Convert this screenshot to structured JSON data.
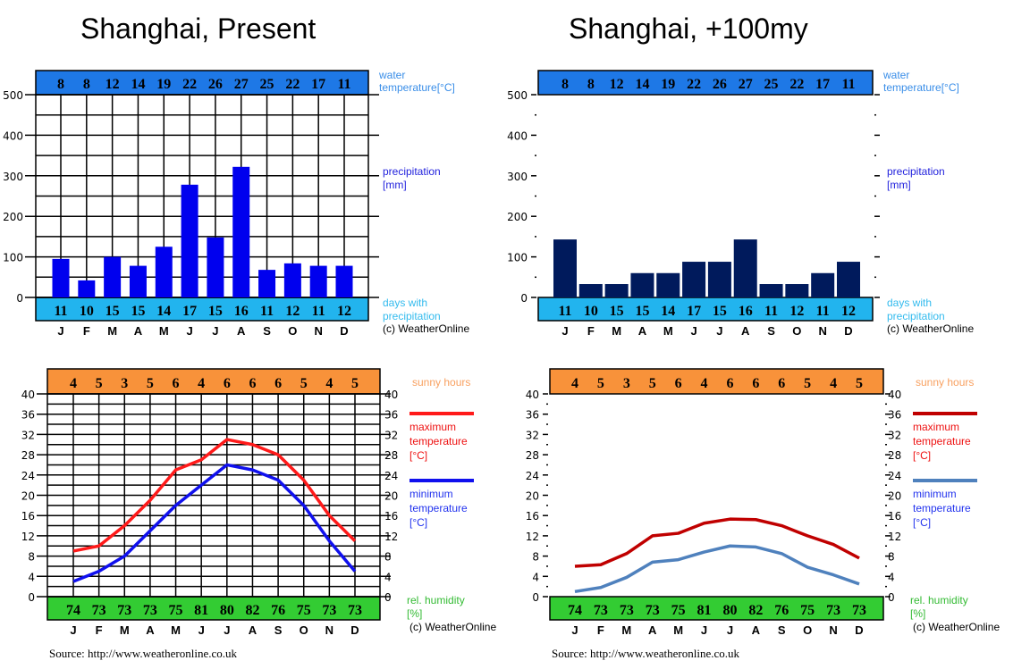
{
  "titles": [
    "Shanghai, Present",
    "Shanghai, +100my"
  ],
  "sources": [
    "Source: http://www.weatheronline.co.uk",
    "Source: http://www.weatheronline.co.uk"
  ],
  "colors": {
    "water_band": "#1e78e6",
    "days_band": "#22b4ee",
    "present_bars": "#0000ee",
    "future_bars": "#001a5c",
    "sunny_band": "#f8923a",
    "humidity_band": "#33cc33",
    "present_max": "#ff1a1a",
    "present_min": "#1010ee",
    "future_max": "#c00000",
    "future_min": "#4f81bd",
    "legend_water": "#3a8ee8",
    "legend_precip": "#2222dd",
    "legend_days": "#33bbee",
    "legend_sunny": "#f8a060",
    "legend_max": "#ee1111",
    "legend_min": "#2233ee",
    "legend_humidity": "#33bb33"
  },
  "chart_data": [
    {
      "type": "bar",
      "panel": "Shanghai, Present",
      "categories": [
        "J",
        "F",
        "M",
        "A",
        "M",
        "J",
        "J",
        "A",
        "S",
        "O",
        "N",
        "D"
      ],
      "values": [
        95,
        42,
        100,
        78,
        125,
        278,
        148,
        322,
        68,
        84,
        78,
        78
      ],
      "ylim": [
        0,
        500
      ],
      "yticks": [
        "0",
        "100",
        "200",
        "300",
        "400",
        "500"
      ],
      "grid": true,
      "water_temperature": [
        "8",
        "8",
        "12",
        "14",
        "19",
        "22",
        "26",
        "27",
        "25",
        "22",
        "17",
        "11"
      ],
      "days_with_precipitation": [
        "11",
        "10",
        "15",
        "15",
        "14",
        "17",
        "15",
        "16",
        "11",
        "12",
        "11",
        "12"
      ],
      "legend": {
        "water": [
          "water",
          "temperature[°C]"
        ],
        "precip": [
          "precipitation",
          "[mm]"
        ],
        "days": [
          "days with",
          "precipitation"
        ],
        "copyright": "(c) WeatherOnline"
      }
    },
    {
      "type": "bar",
      "panel": "Shanghai, +100my",
      "categories": [
        "J",
        "F",
        "M",
        "A",
        "M",
        "J",
        "J",
        "A",
        "S",
        "O",
        "N",
        "D"
      ],
      "values": [
        143,
        33,
        33,
        60,
        60,
        88,
        88,
        143,
        33,
        33,
        60,
        88
      ],
      "ylim": [
        0,
        500
      ],
      "yticks": [
        "0",
        "100",
        "200",
        "300",
        "400",
        "500"
      ],
      "grid": false,
      "water_temperature": [
        "8",
        "8",
        "12",
        "14",
        "19",
        "22",
        "26",
        "27",
        "25",
        "22",
        "17",
        "11"
      ],
      "days_with_precipitation": [
        "11",
        "10",
        "15",
        "15",
        "14",
        "17",
        "15",
        "16",
        "11",
        "12",
        "11",
        "12"
      ],
      "legend": {
        "water": [
          "water",
          "temperature[°C]"
        ],
        "precip": [
          "precipitation",
          "[mm]"
        ],
        "days": [
          "days with",
          "precipitation"
        ],
        "copyright": "(c) WeatherOnline"
      }
    },
    {
      "type": "line",
      "panel": "Shanghai, Present",
      "categories": [
        "J",
        "F",
        "M",
        "A",
        "M",
        "J",
        "J",
        "A",
        "S",
        "O",
        "N",
        "D"
      ],
      "series": [
        {
          "name": "maximum temperature [°C]",
          "values": [
            9,
            10,
            14,
            19,
            25,
            27,
            31,
            30,
            28,
            23,
            16,
            11
          ]
        },
        {
          "name": "minimum temperature [°C]",
          "values": [
            3,
            5,
            8,
            13,
            18,
            22,
            26,
            25,
            23,
            18,
            11,
            5
          ]
        }
      ],
      "ylim": [
        0,
        40
      ],
      "yticks": [
        "0",
        "4",
        "8",
        "12",
        "16",
        "20",
        "24",
        "28",
        "32",
        "36",
        "40"
      ],
      "grid": true,
      "sunny_hours": [
        "4",
        "5",
        "3",
        "5",
        "6",
        "4",
        "6",
        "6",
        "6",
        "5",
        "4",
        "5"
      ],
      "relative_humidity": [
        "74",
        "73",
        "73",
        "73",
        "75",
        "81",
        "80",
        "82",
        "76",
        "75",
        "73",
        "73"
      ],
      "legend": {
        "sunny": "sunny hours",
        "max": [
          "maximum",
          "temperature",
          "[°C]"
        ],
        "min": [
          "minimum",
          "temperature",
          "[°C]"
        ],
        "humidity": [
          "rel. humidity",
          "[%]"
        ],
        "copyright": "(c) WeatherOnline"
      }
    },
    {
      "type": "line",
      "panel": "Shanghai, +100my",
      "categories": [
        "J",
        "F",
        "M",
        "A",
        "M",
        "J",
        "J",
        "A",
        "S",
        "O",
        "N",
        "D"
      ],
      "series": [
        {
          "name": "maximum temperature [°C]",
          "values": [
            6,
            6.3,
            8.5,
            12,
            12.5,
            14.5,
            15.3,
            15.2,
            14,
            12,
            10.3,
            7.6
          ]
        },
        {
          "name": "minimum temperature [°C]",
          "values": [
            1,
            1.8,
            3.8,
            6.8,
            7.3,
            8.8,
            10,
            9.8,
            8.5,
            5.8,
            4.3,
            2.5
          ]
        }
      ],
      "ylim": [
        0,
        40
      ],
      "yticks": [
        "0",
        "4",
        "8",
        "12",
        "16",
        "20",
        "24",
        "28",
        "32",
        "36",
        "40"
      ],
      "grid": false,
      "sunny_hours": [
        "4",
        "5",
        "3",
        "5",
        "6",
        "4",
        "6",
        "6",
        "6",
        "5",
        "4",
        "5"
      ],
      "relative_humidity": [
        "74",
        "73",
        "73",
        "73",
        "75",
        "81",
        "80",
        "82",
        "76",
        "75",
        "73",
        "73"
      ],
      "legend": {
        "sunny": "sunny hours",
        "max": [
          "maximum",
          "temperature",
          "[°C]"
        ],
        "min": [
          "minimum",
          "temperature",
          "[°C]"
        ],
        "humidity": [
          "rel. humidity",
          "[%]"
        ],
        "copyright": "(c) WeatherOnline"
      }
    }
  ]
}
